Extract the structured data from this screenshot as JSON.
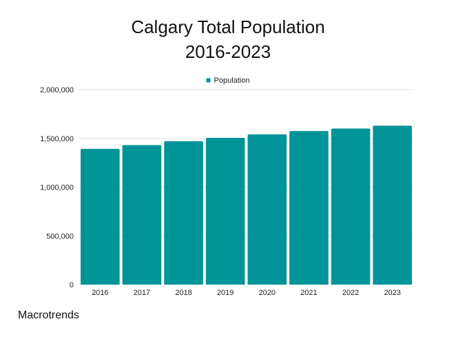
{
  "chart_data": {
    "type": "bar",
    "title_lines": [
      "Calgary Total Population",
      "2016-2023"
    ],
    "categories": [
      "2016",
      "2017",
      "2018",
      "2019",
      "2020",
      "2021",
      "2022",
      "2023"
    ],
    "series": [
      {
        "name": "Population",
        "color": "#009499",
        "values": [
          1392000,
          1431000,
          1471000,
          1505000,
          1541000,
          1575000,
          1601000,
          1630000
        ]
      }
    ],
    "ylim": [
      0,
      2000000
    ],
    "yticks": [
      0,
      500000,
      1000000,
      1500000,
      2000000
    ],
    "ytick_labels": [
      "0",
      "500,000",
      "1,000,000",
      "1,500,000",
      "2,000,000"
    ],
    "grid": true,
    "legend_position": "top-center"
  },
  "watermark": "Macrotrends"
}
